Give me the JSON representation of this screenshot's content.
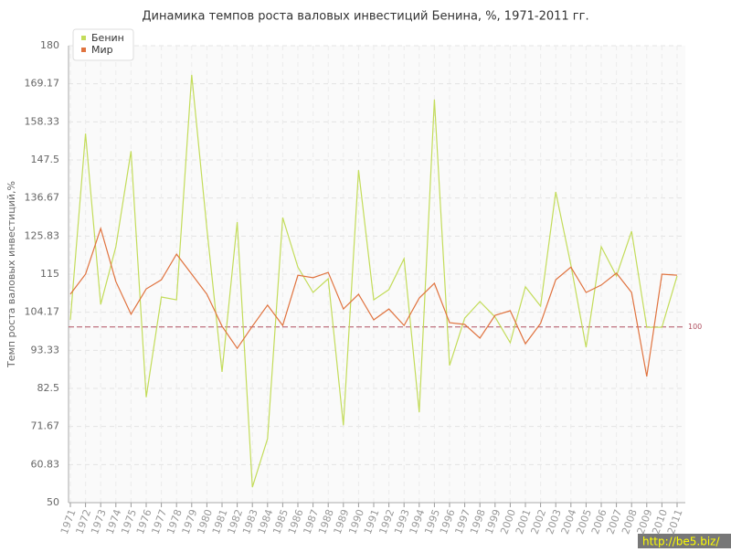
{
  "chart_data": {
    "type": "line",
    "title": "Динамика темпов роста валовых инвестиций Бенина, %, 1971-2011 гг.",
    "y_label": "Темп роста валовых инвестиций,%",
    "categories": [
      "1971",
      "1972",
      "1973",
      "1974",
      "1975",
      "1976",
      "1977",
      "1978",
      "1979",
      "1980",
      "1981",
      "1982",
      "1983",
      "1984",
      "1985",
      "1986",
      "1987",
      "1988",
      "1989",
      "1990",
      "1991",
      "1992",
      "1993",
      "1994",
      "1995",
      "1996",
      "1997",
      "1998",
      "1999",
      "2000",
      "2001",
      "2002",
      "2003",
      "2004",
      "2005",
      "2006",
      "2007",
      "2008",
      "2009",
      "2010",
      "2011"
    ],
    "series": [
      {
        "name": "Бенин",
        "color": "#c3dc5a",
        "values": [
          102,
          155,
          106.4,
          122.8,
          150,
          80,
          108.5,
          107.7,
          171.7,
          128,
          87.2,
          129.8,
          54.4,
          68.2,
          131.1,
          117,
          109.8,
          113.7,
          72,
          144.6,
          107.7,
          110.6,
          119.4,
          75.7,
          164.7,
          89,
          102.5,
          107.2,
          102.8,
          95.5,
          111.4,
          105.9,
          138.4,
          117.6,
          94.2,
          122.8,
          114.5,
          127.2,
          99.9,
          99.9,
          114.5
        ]
      },
      {
        "name": "Мир",
        "color": "#e0733f",
        "values": [
          109.3,
          115,
          128,
          112.9,
          103.6,
          110.8,
          113.4,
          120.7,
          115,
          109.3,
          100.2,
          93.9,
          100.2,
          106.2,
          100.4,
          114.7,
          114,
          115.5,
          105.1,
          109.3,
          102,
          105.1,
          100.4,
          108.2,
          112.4,
          101.2,
          100.7,
          96.8,
          103.3,
          104.6,
          95.2,
          101,
          113.4,
          117,
          109.8,
          111.9,
          115.3,
          109.8,
          85.9,
          115,
          114.7
        ]
      }
    ],
    "ylim": [
      50,
      180
    ],
    "yticks": [
      50,
      60.83,
      71.67,
      82.5,
      93.33,
      104.17,
      115,
      125.83,
      136.67,
      147.5,
      158.33,
      169.17,
      180
    ],
    "reference_line": 100,
    "grid": true,
    "legend": "top-left",
    "watermark": "http://be5.biz/"
  }
}
